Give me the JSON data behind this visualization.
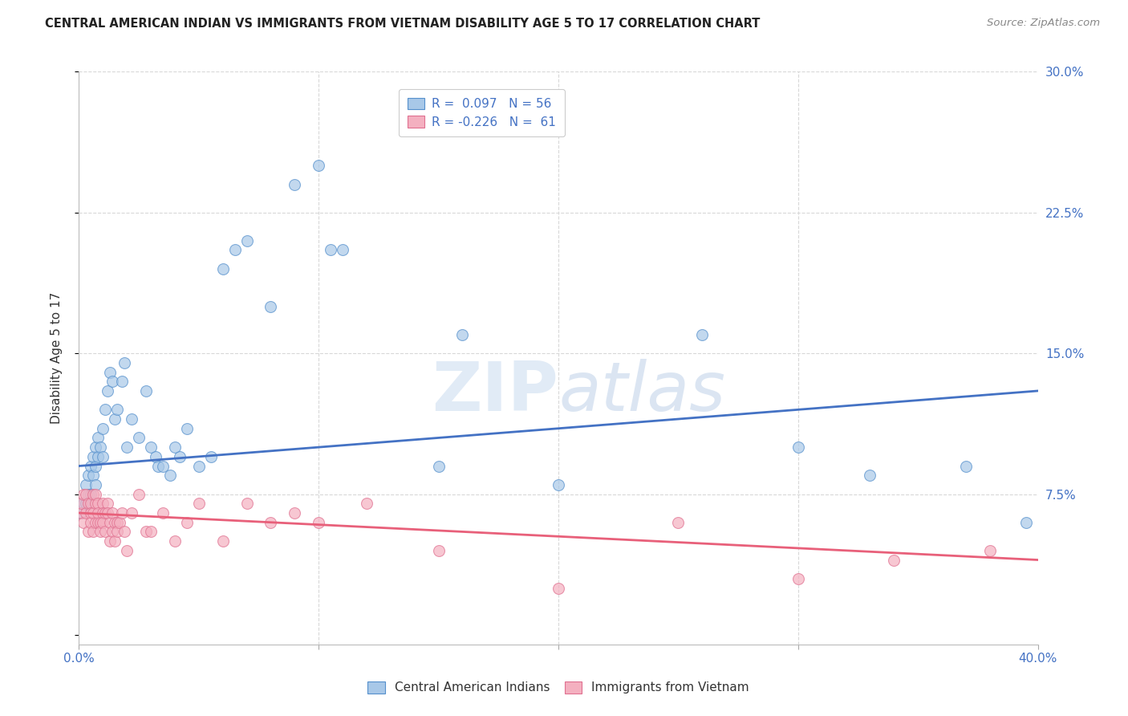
{
  "title": "CENTRAL AMERICAN INDIAN VS IMMIGRANTS FROM VIETNAM DISABILITY AGE 5 TO 17 CORRELATION CHART",
  "source": "Source: ZipAtlas.com",
  "ylabel": "Disability Age 5 to 17",
  "xlim": [
    0.0,
    0.4
  ],
  "ylim": [
    -0.02,
    0.32
  ],
  "blue_R": 0.097,
  "blue_N": 56,
  "pink_R": -0.226,
  "pink_N": 61,
  "blue_color": "#a8c8e8",
  "pink_color": "#f4b0c0",
  "blue_edge_color": "#5590cc",
  "pink_edge_color": "#e07090",
  "blue_line_color": "#4472c4",
  "pink_line_color": "#e8607a",
  "watermark": "ZIPatlas",
  "background_color": "#ffffff",
  "grid_color": "#d8d8d8",
  "title_color": "#222222",
  "source_color": "#888888",
  "axis_label_color": "#333333",
  "tick_color": "#4472c4",
  "blue_x": [
    0.001,
    0.002,
    0.003,
    0.003,
    0.004,
    0.004,
    0.005,
    0.005,
    0.006,
    0.006,
    0.007,
    0.007,
    0.007,
    0.008,
    0.008,
    0.009,
    0.01,
    0.01,
    0.011,
    0.012,
    0.013,
    0.014,
    0.015,
    0.016,
    0.018,
    0.019,
    0.02,
    0.022,
    0.025,
    0.028,
    0.03,
    0.032,
    0.033,
    0.035,
    0.038,
    0.04,
    0.042,
    0.045,
    0.05,
    0.055,
    0.06,
    0.065,
    0.07,
    0.08,
    0.09,
    0.1,
    0.105,
    0.11,
    0.15,
    0.16,
    0.2,
    0.26,
    0.3,
    0.33,
    0.37,
    0.395
  ],
  "blue_y": [
    0.065,
    0.07,
    0.07,
    0.08,
    0.075,
    0.085,
    0.09,
    0.075,
    0.095,
    0.085,
    0.1,
    0.09,
    0.08,
    0.095,
    0.105,
    0.1,
    0.11,
    0.095,
    0.12,
    0.13,
    0.14,
    0.135,
    0.115,
    0.12,
    0.135,
    0.145,
    0.1,
    0.115,
    0.105,
    0.13,
    0.1,
    0.095,
    0.09,
    0.09,
    0.085,
    0.1,
    0.095,
    0.11,
    0.09,
    0.095,
    0.195,
    0.205,
    0.21,
    0.175,
    0.24,
    0.25,
    0.205,
    0.205,
    0.09,
    0.16,
    0.08,
    0.16,
    0.1,
    0.085,
    0.09,
    0.06
  ],
  "pink_x": [
    0.001,
    0.001,
    0.002,
    0.002,
    0.003,
    0.003,
    0.004,
    0.004,
    0.005,
    0.005,
    0.005,
    0.006,
    0.006,
    0.006,
    0.007,
    0.007,
    0.007,
    0.008,
    0.008,
    0.008,
    0.009,
    0.009,
    0.01,
    0.01,
    0.01,
    0.011,
    0.011,
    0.012,
    0.012,
    0.013,
    0.013,
    0.014,
    0.014,
    0.015,
    0.015,
    0.016,
    0.016,
    0.017,
    0.018,
    0.019,
    0.02,
    0.022,
    0.025,
    0.028,
    0.03,
    0.035,
    0.04,
    0.045,
    0.05,
    0.06,
    0.07,
    0.08,
    0.09,
    0.1,
    0.12,
    0.15,
    0.2,
    0.25,
    0.3,
    0.34,
    0.38
  ],
  "pink_y": [
    0.065,
    0.07,
    0.06,
    0.075,
    0.065,
    0.075,
    0.07,
    0.055,
    0.07,
    0.065,
    0.06,
    0.075,
    0.065,
    0.055,
    0.07,
    0.06,
    0.075,
    0.07,
    0.06,
    0.065,
    0.06,
    0.055,
    0.07,
    0.065,
    0.06,
    0.065,
    0.055,
    0.07,
    0.065,
    0.06,
    0.05,
    0.065,
    0.055,
    0.06,
    0.05,
    0.06,
    0.055,
    0.06,
    0.065,
    0.055,
    0.045,
    0.065,
    0.075,
    0.055,
    0.055,
    0.065,
    0.05,
    0.06,
    0.07,
    0.05,
    0.07,
    0.06,
    0.065,
    0.06,
    0.07,
    0.045,
    0.025,
    0.06,
    0.03,
    0.04,
    0.045
  ]
}
